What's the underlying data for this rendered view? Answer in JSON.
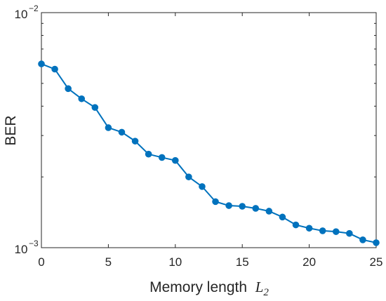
{
  "chart_data": {
    "type": "line",
    "xlabel": "Memory length",
    "xlabel_var": "L",
    "xlabel_sub": "2",
    "ylabel": "BER",
    "xlim": [
      0,
      25
    ],
    "ylim": [
      0.001,
      0.01
    ],
    "yscale": "log",
    "xticks": [
      0,
      5,
      10,
      15,
      20,
      25
    ],
    "xtick_labels": [
      "0",
      "5",
      "10",
      "15",
      "20",
      "25"
    ],
    "yticks": [
      {
        "value": 0.01,
        "base": "10",
        "exponent": "−2"
      },
      {
        "value": 0.001,
        "base": "10",
        "exponent": "−3"
      }
    ],
    "grid": false,
    "series": [
      {
        "color": "#0072BD",
        "marker": "circle",
        "x": [
          0,
          1,
          2,
          3,
          4,
          5,
          6,
          7,
          8,
          9,
          10,
          11,
          12,
          13,
          14,
          15,
          16,
          17,
          18,
          19,
          20,
          21,
          22,
          23,
          24,
          25
        ],
        "y": [
          0.00605,
          0.00575,
          0.00475,
          0.0043,
          0.00395,
          0.00324,
          0.0031,
          0.00284,
          0.0025,
          0.00242,
          0.00235,
          0.002,
          0.00182,
          0.00157,
          0.00151,
          0.0015,
          0.00147,
          0.00143,
          0.00135,
          0.00125,
          0.00121,
          0.00118,
          0.00117,
          0.00115,
          0.00108,
          0.00105
        ]
      }
    ]
  }
}
